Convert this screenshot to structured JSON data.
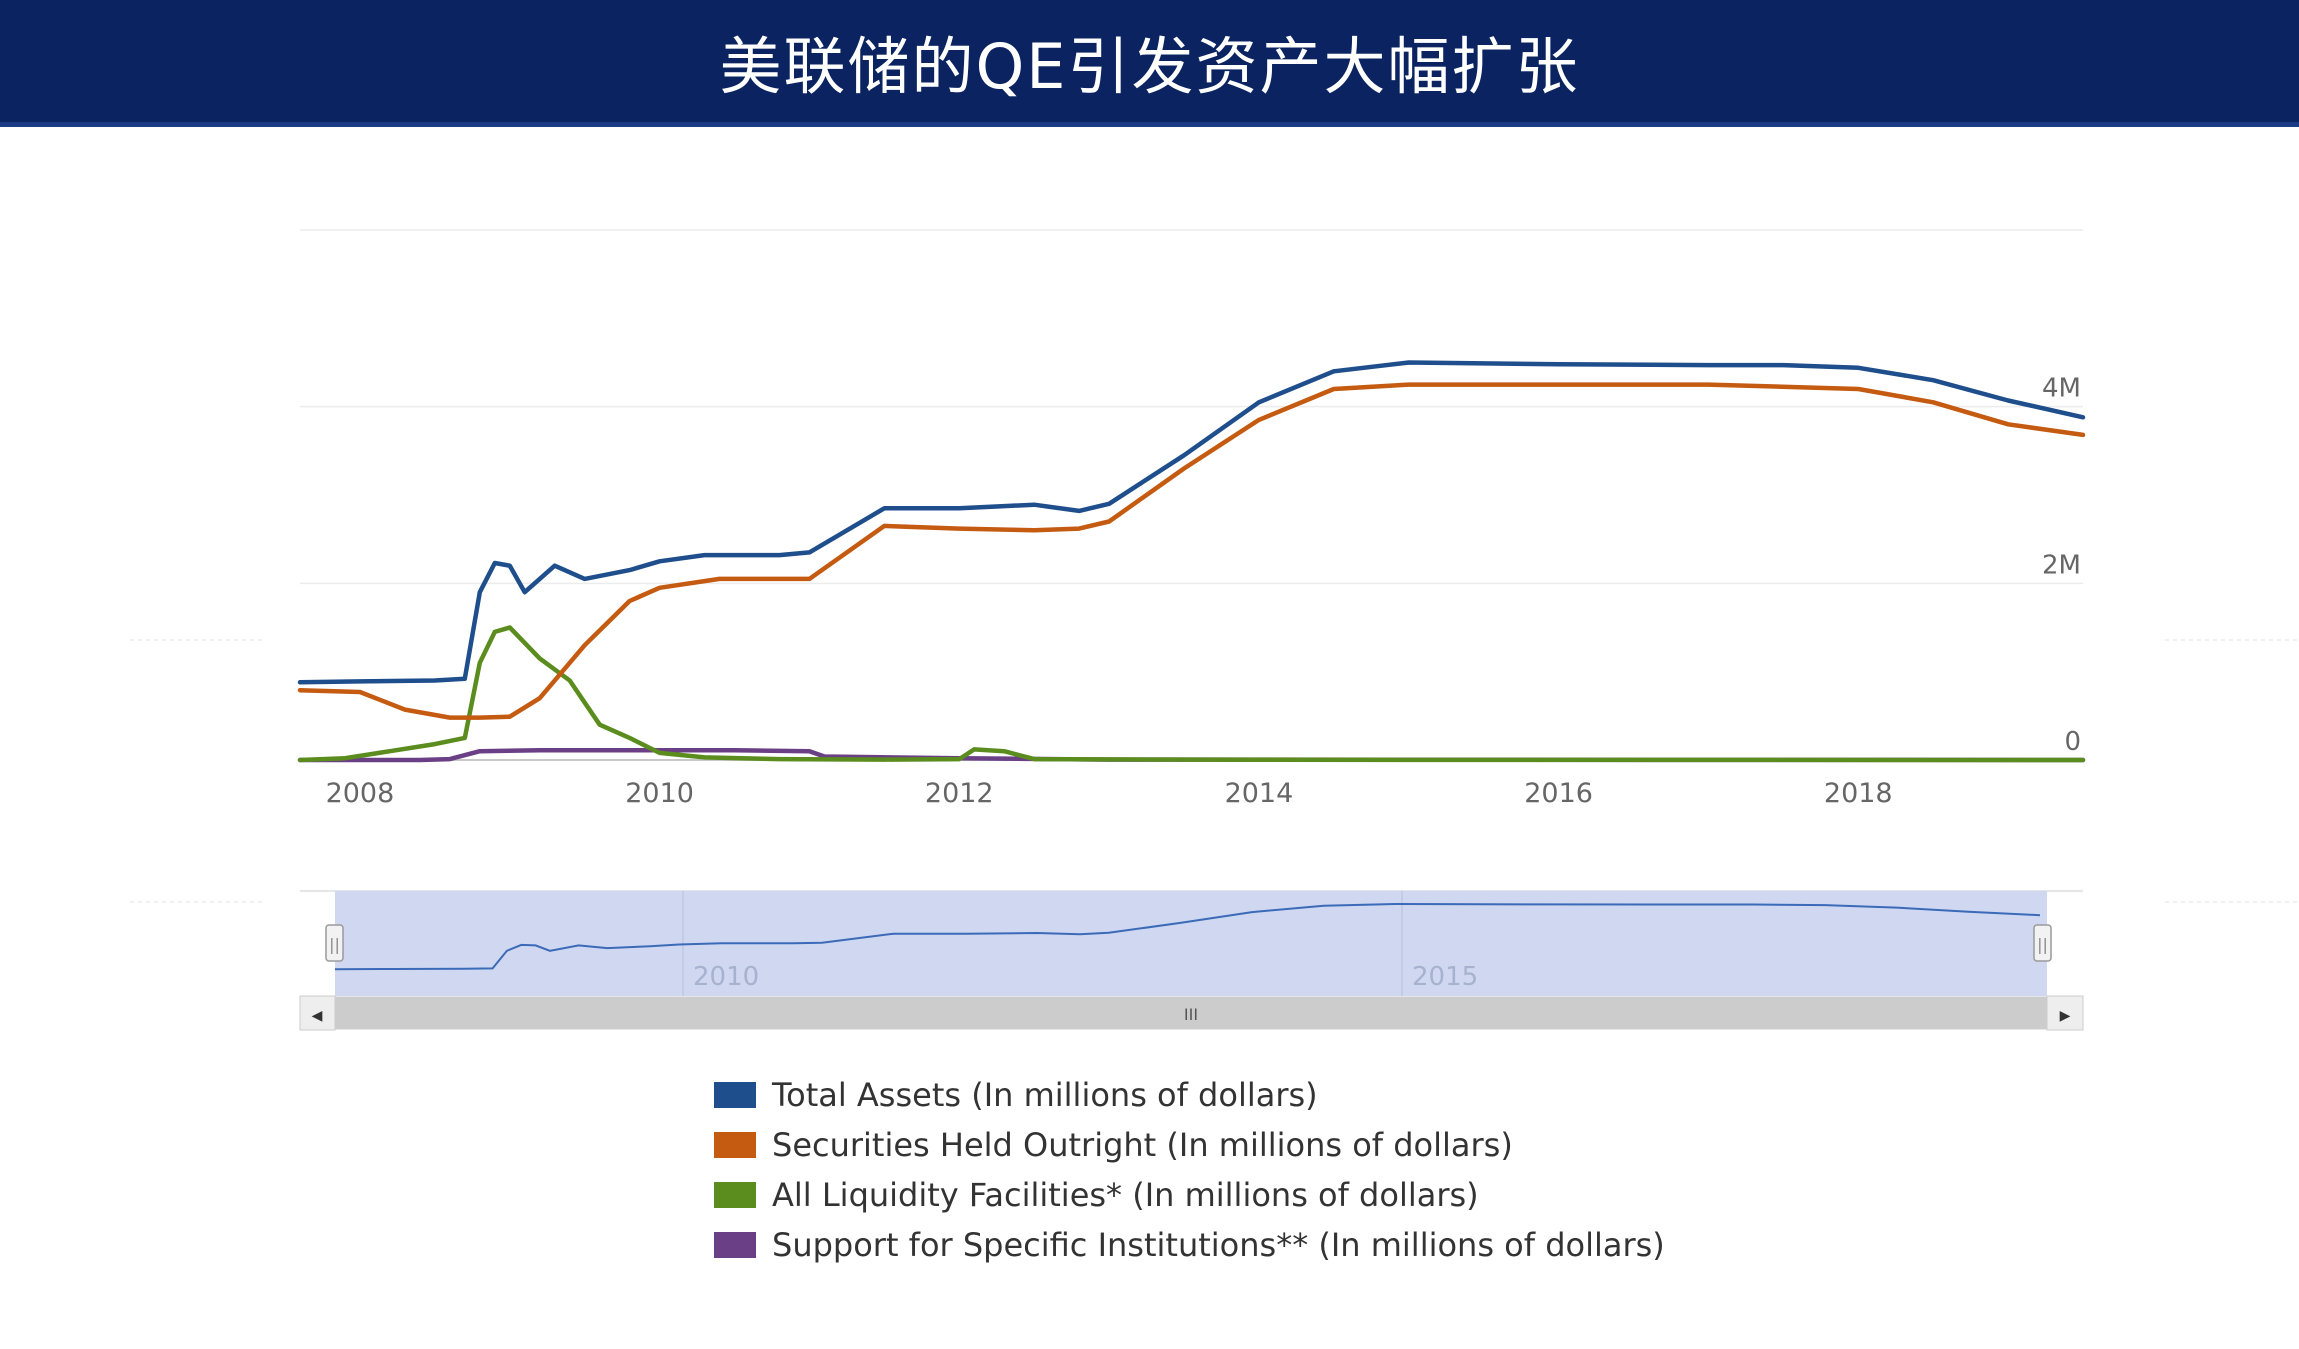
{
  "header": {
    "title": "美联储的QE引发资产大幅扩张"
  },
  "navigator": {
    "ticks": [
      "2010",
      "2015"
    ],
    "scroll_grip": "III",
    "left_arrow": "◀",
    "right_arrow": "▶",
    "handle_grip": "||"
  },
  "colors": {
    "header_bg": "#0b2461",
    "total_assets": "#1f4e8c",
    "securities": "#c55a11",
    "liquidity": "#5b8c1e",
    "support": "#6b3f86",
    "navigator_fill": "#cfd8f0"
  },
  "chart_data": {
    "type": "line",
    "x_tick_labels": [
      "2008",
      "2010",
      "2012",
      "2014",
      "2016",
      "2018"
    ],
    "y_tick_labels": [
      "0",
      "2M",
      "4M"
    ],
    "xlim": [
      2007.6,
      2019.5
    ],
    "ylim": [
      0,
      6000000
    ],
    "grid": true,
    "legend_position": "bottom",
    "series": [
      {
        "name": "Total Assets (In millions of dollars)",
        "color": "#1f4e8c",
        "points": [
          [
            2007.6,
            880000
          ],
          [
            2008.0,
            890000
          ],
          [
            2008.5,
            900000
          ],
          [
            2008.7,
            920000
          ],
          [
            2008.8,
            1900000
          ],
          [
            2008.9,
            2230000
          ],
          [
            2009.0,
            2200000
          ],
          [
            2009.1,
            1900000
          ],
          [
            2009.3,
            2200000
          ],
          [
            2009.5,
            2050000
          ],
          [
            2009.8,
            2150000
          ],
          [
            2010.0,
            2250000
          ],
          [
            2010.3,
            2320000
          ],
          [
            2010.8,
            2320000
          ],
          [
            2011.0,
            2350000
          ],
          [
            2011.5,
            2850000
          ],
          [
            2012.0,
            2850000
          ],
          [
            2012.5,
            2890000
          ],
          [
            2012.8,
            2820000
          ],
          [
            2013.0,
            2900000
          ],
          [
            2013.5,
            3450000
          ],
          [
            2014.0,
            4050000
          ],
          [
            2014.5,
            4400000
          ],
          [
            2015.0,
            4500000
          ],
          [
            2016.0,
            4480000
          ],
          [
            2017.0,
            4470000
          ],
          [
            2017.5,
            4470000
          ],
          [
            2018.0,
            4440000
          ],
          [
            2018.5,
            4300000
          ],
          [
            2019.0,
            4070000
          ],
          [
            2019.5,
            3880000
          ]
        ]
      },
      {
        "name": "Securities Held Outright (In millions of dollars)",
        "color": "#c55a11",
        "points": [
          [
            2007.6,
            790000
          ],
          [
            2008.0,
            770000
          ],
          [
            2008.3,
            570000
          ],
          [
            2008.6,
            480000
          ],
          [
            2008.8,
            480000
          ],
          [
            2009.0,
            490000
          ],
          [
            2009.2,
            700000
          ],
          [
            2009.5,
            1300000
          ],
          [
            2009.8,
            1800000
          ],
          [
            2010.0,
            1950000
          ],
          [
            2010.4,
            2050000
          ],
          [
            2011.0,
            2050000
          ],
          [
            2011.5,
            2650000
          ],
          [
            2012.0,
            2620000
          ],
          [
            2012.5,
            2600000
          ],
          [
            2012.8,
            2620000
          ],
          [
            2013.0,
            2700000
          ],
          [
            2013.5,
            3300000
          ],
          [
            2014.0,
            3850000
          ],
          [
            2014.5,
            4200000
          ],
          [
            2015.0,
            4250000
          ],
          [
            2016.0,
            4250000
          ],
          [
            2017.0,
            4250000
          ],
          [
            2018.0,
            4200000
          ],
          [
            2018.5,
            4050000
          ],
          [
            2019.0,
            3800000
          ],
          [
            2019.5,
            3680000
          ]
        ]
      },
      {
        "name": "All Liquidity Facilities* (In millions of dollars)",
        "color": "#5b8c1e",
        "points": [
          [
            2007.6,
            0
          ],
          [
            2007.9,
            20000
          ],
          [
            2008.2,
            100000
          ],
          [
            2008.5,
            180000
          ],
          [
            2008.7,
            250000
          ],
          [
            2008.8,
            1100000
          ],
          [
            2008.9,
            1450000
          ],
          [
            2009.0,
            1500000
          ],
          [
            2009.2,
            1150000
          ],
          [
            2009.4,
            900000
          ],
          [
            2009.6,
            400000
          ],
          [
            2009.8,
            250000
          ],
          [
            2010.0,
            80000
          ],
          [
            2010.3,
            30000
          ],
          [
            2010.8,
            10000
          ],
          [
            2011.5,
            5000
          ],
          [
            2012.0,
            10000
          ],
          [
            2012.1,
            120000
          ],
          [
            2012.3,
            100000
          ],
          [
            2012.5,
            10000
          ],
          [
            2014.0,
            2000
          ],
          [
            2019.5,
            0
          ]
        ]
      },
      {
        "name": "Support for Specific Institutions** (In millions of dollars)",
        "color": "#6b3f86",
        "points": [
          [
            2007.6,
            0
          ],
          [
            2008.4,
            0
          ],
          [
            2008.6,
            10000
          ],
          [
            2008.8,
            100000
          ],
          [
            2009.2,
            110000
          ],
          [
            2010.0,
            110000
          ],
          [
            2010.5,
            110000
          ],
          [
            2011.0,
            100000
          ],
          [
            2011.1,
            40000
          ],
          [
            2012.0,
            20000
          ],
          [
            2013.0,
            5000
          ],
          [
            2019.5,
            0
          ]
        ]
      }
    ]
  }
}
